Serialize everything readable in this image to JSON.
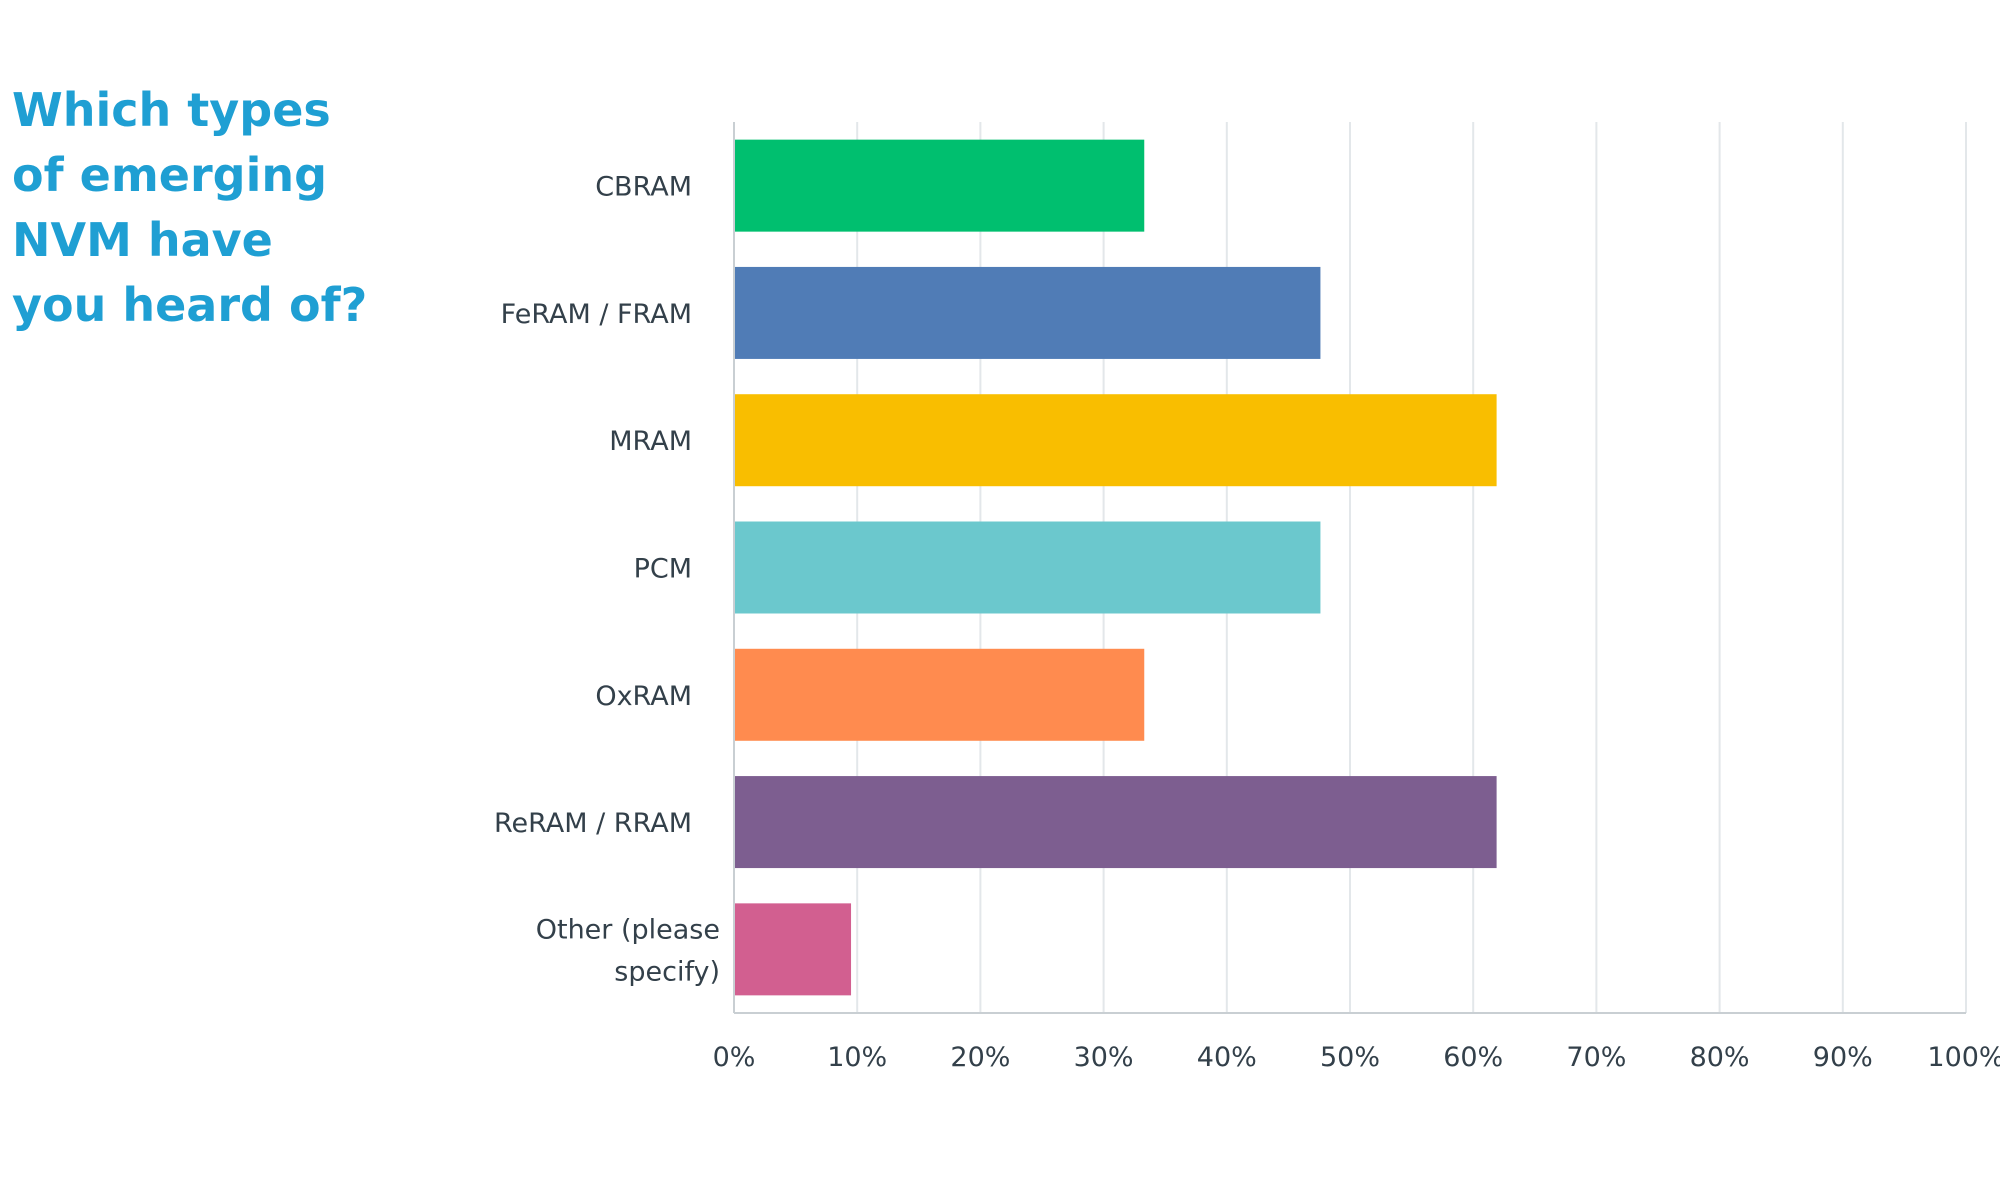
{
  "question": {
    "lines": [
      "Which types",
      "of emerging",
      "NVM have",
      "you heard of?"
    ]
  },
  "chart_data": {
    "type": "bar",
    "orientation": "horizontal",
    "title": "Which types of emerging NVM have you heard of?",
    "categories": [
      [
        "CBRAM"
      ],
      [
        "FeRAM / FRAM"
      ],
      [
        "MRAM"
      ],
      [
        "PCM"
      ],
      [
        "OxRAM"
      ],
      [
        "ReRAM / RRAM"
      ],
      [
        "Other (please",
        "specify)"
      ]
    ],
    "values": [
      33.3,
      47.6,
      61.9,
      47.6,
      33.3,
      61.9,
      9.5
    ],
    "value_unit": "%",
    "colors": [
      "#00bf6f",
      "#507cb6",
      "#f9be00",
      "#6bc8cd",
      "#ff8b4f",
      "#7d5e90",
      "#d25f90"
    ],
    "xlim": [
      0,
      100
    ],
    "xticks": [
      "0%",
      "10%",
      "20%",
      "30%",
      "40%",
      "50%",
      "60%",
      "70%",
      "80%",
      "90%",
      "100%"
    ],
    "grid": true,
    "gridline_color": "#e3e7ea",
    "axis_color": "#c9cfd3"
  }
}
